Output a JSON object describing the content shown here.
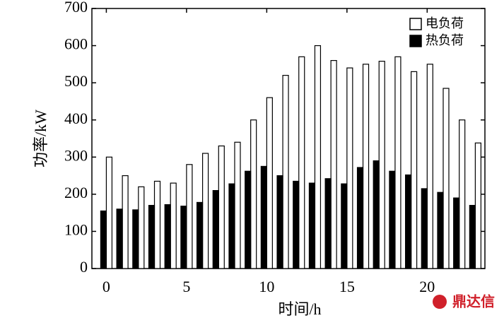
{
  "chart_data": {
    "type": "bar",
    "x_label": "时间/h",
    "y_label": "功率/kW",
    "x": [
      0,
      1,
      2,
      3,
      4,
      5,
      6,
      7,
      8,
      9,
      10,
      11,
      12,
      13,
      14,
      15,
      16,
      17,
      18,
      19,
      20,
      21,
      22,
      23
    ],
    "series": [
      {
        "name": "电负荷",
        "color": "#ffffff",
        "values": [
          300,
          250,
          220,
          235,
          230,
          280,
          310,
          330,
          340,
          400,
          460,
          520,
          570,
          600,
          560,
          540,
          550,
          558,
          570,
          530,
          550,
          485,
          400,
          338
        ]
      },
      {
        "name": "热负荷",
        "color": "#000000",
        "values": [
          155,
          160,
          158,
          170,
          172,
          168,
          178,
          210,
          228,
          262,
          275,
          250,
          235,
          230,
          242,
          228,
          272,
          290,
          262,
          252,
          215,
          205,
          190,
          170
        ]
      }
    ],
    "xlim": [
      -0.9,
      23.6
    ],
    "xticks": [
      0,
      5,
      10,
      15,
      20
    ],
    "ylim": [
      0,
      700
    ],
    "yticks": [
      0,
      100,
      200,
      300,
      400,
      500,
      600,
      700
    ],
    "legend": "top-right",
    "watermark": "鼎达信"
  }
}
